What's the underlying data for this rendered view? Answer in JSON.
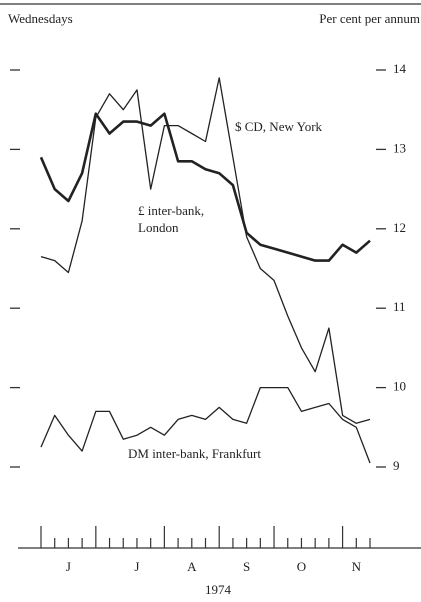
{
  "chart_data": {
    "type": "line",
    "left_label": "Wednesdays",
    "right_label": "Per cent per annum",
    "x_label": "1974",
    "categories": [
      null,
      null,
      "J",
      null,
      null,
      null,
      null,
      "J",
      null,
      null,
      null,
      "A",
      null,
      null,
      null,
      "S",
      null,
      null,
      null,
      "O",
      null,
      null,
      null,
      "N",
      null
    ],
    "series": [
      {
        "name": "$ CD, New York",
        "color": "#222",
        "width": 1.3,
        "values": [
          11.65,
          11.6,
          11.45,
          12.1,
          13.4,
          13.7,
          13.5,
          13.75,
          12.5,
          13.3,
          13.3,
          13.2,
          13.1,
          13.9,
          12.9,
          11.9,
          11.5,
          11.35,
          10.9,
          10.5,
          10.2,
          10.75,
          9.65,
          9.55,
          9.6
        ]
      },
      {
        "name": "£ inter-bank, London",
        "color": "#222",
        "width": 2.6,
        "values": [
          12.9,
          12.5,
          12.35,
          12.7,
          13.45,
          13.2,
          13.35,
          13.35,
          13.3,
          13.45,
          12.85,
          12.85,
          12.75,
          12.7,
          12.55,
          11.95,
          11.8,
          11.75,
          11.7,
          11.65,
          11.6,
          11.6,
          11.8,
          11.7,
          11.85
        ]
      },
      {
        "name": "DM inter-bank, Frankfurt",
        "color": "#222",
        "width": 1.3,
        "values": [
          9.25,
          9.65,
          9.4,
          9.2,
          9.7,
          9.7,
          9.35,
          9.4,
          9.5,
          9.4,
          9.6,
          9.65,
          9.6,
          9.75,
          9.6,
          9.55,
          10.0,
          10.0,
          10.0,
          9.7,
          9.75,
          9.8,
          9.6,
          9.5,
          9.05
        ]
      }
    ],
    "ylim": [
      9,
      14
    ],
    "yticks": [
      9,
      10,
      11,
      12,
      13,
      14
    ]
  }
}
